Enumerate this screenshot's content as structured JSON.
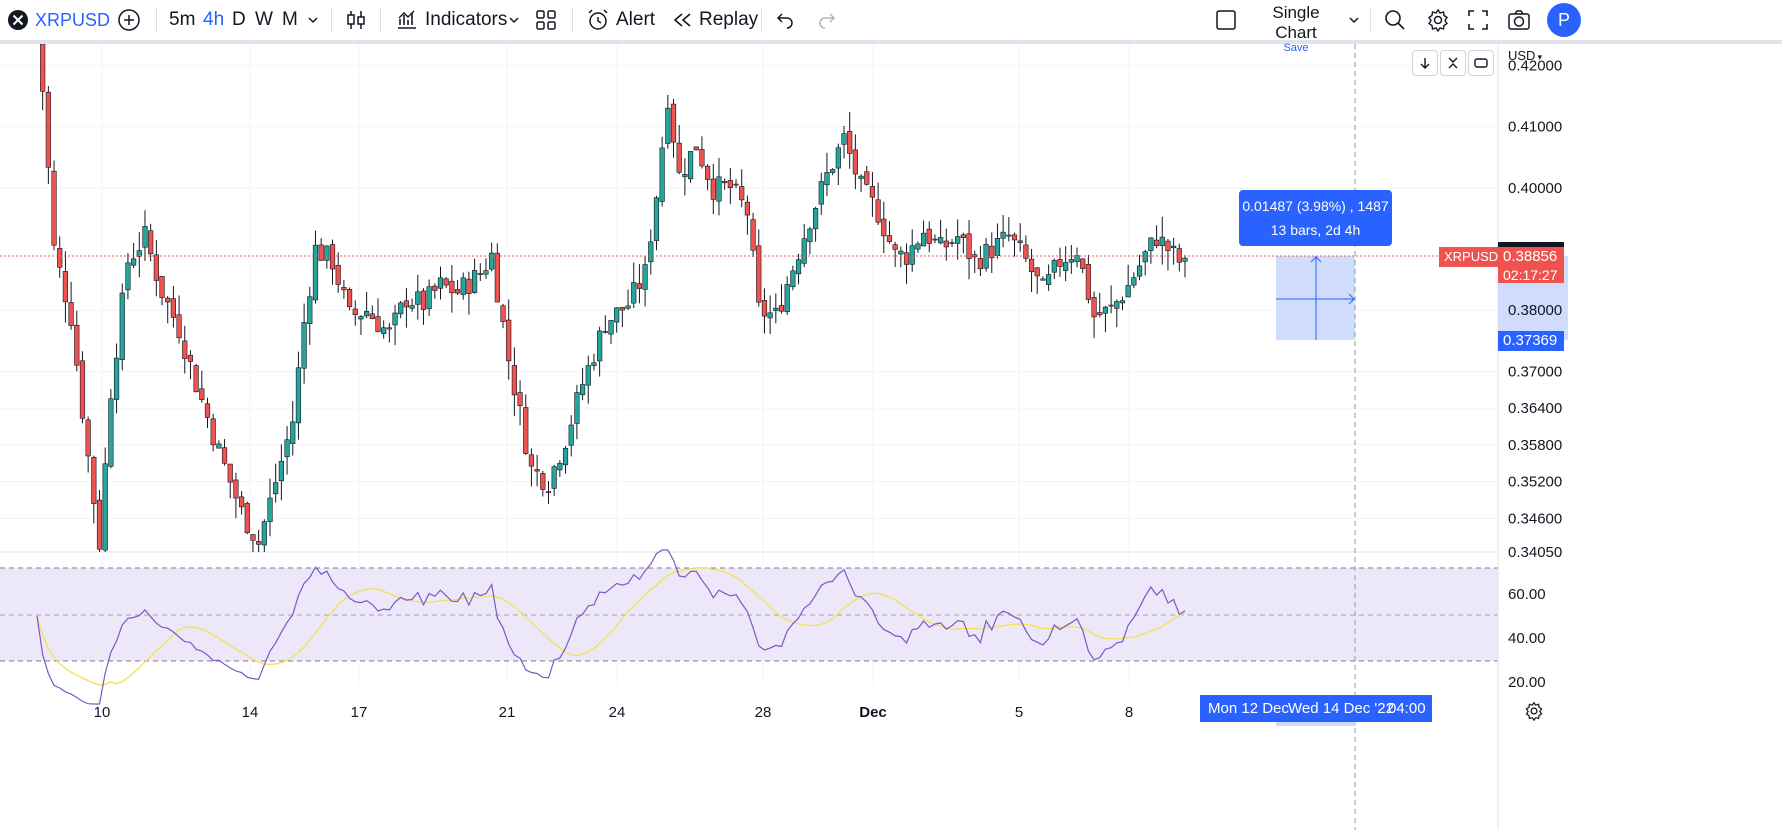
{
  "toolbar": {
    "symbol": "XRPUSD",
    "intervals": [
      "5m",
      "4h",
      "D",
      "W",
      "M"
    ],
    "active_interval": "4h",
    "indicators_label": "Indicators",
    "alert_label": "Alert",
    "replay_label": "Replay",
    "layout_title": "Single Chart",
    "layout_save": "Save",
    "profile_initial": "P"
  },
  "chart": {
    "currency": "USD",
    "symbol_tag": "XRPUSD",
    "last_price": "0.38856",
    "countdown": "02:17:27",
    "crosshair_price": "0.37369",
    "measure_line1": "0.01487 (3.98%) , 1487",
    "measure_line2": "13 bars, 2d 4h",
    "crosshair_time_left": "Mon 12 Dec",
    "crosshair_time": "Wed 14 Dec '22",
    "crosshair_hour": "04:00",
    "colors": {
      "up": "#26a69a",
      "down": "#ef5350",
      "rsi": "#7e57c2",
      "rsi_ma": "#f5e15a",
      "accent": "#2962ff"
    }
  },
  "chart_data": {
    "type": "candlestick",
    "symbol": "XRPUSD",
    "interval": "4h",
    "price_axis_ticks": [
      "0.42000",
      "0.41000",
      "0.40000",
      "0.38000",
      "0.37000",
      "0.36400",
      "0.35800",
      "0.35200",
      "0.34600",
      "0.34050"
    ],
    "time_axis_ticks": [
      "10",
      "14",
      "17",
      "21",
      "24",
      "28",
      "Dec",
      "5",
      "8"
    ],
    "price_range": [
      0.3405,
      0.4235
    ],
    "rsi": {
      "ticks": [
        "60.00",
        "40.00",
        "20.00"
      ],
      "range": [
        10,
        80
      ],
      "bands": [
        70,
        30
      ],
      "midline": 50
    }
  }
}
